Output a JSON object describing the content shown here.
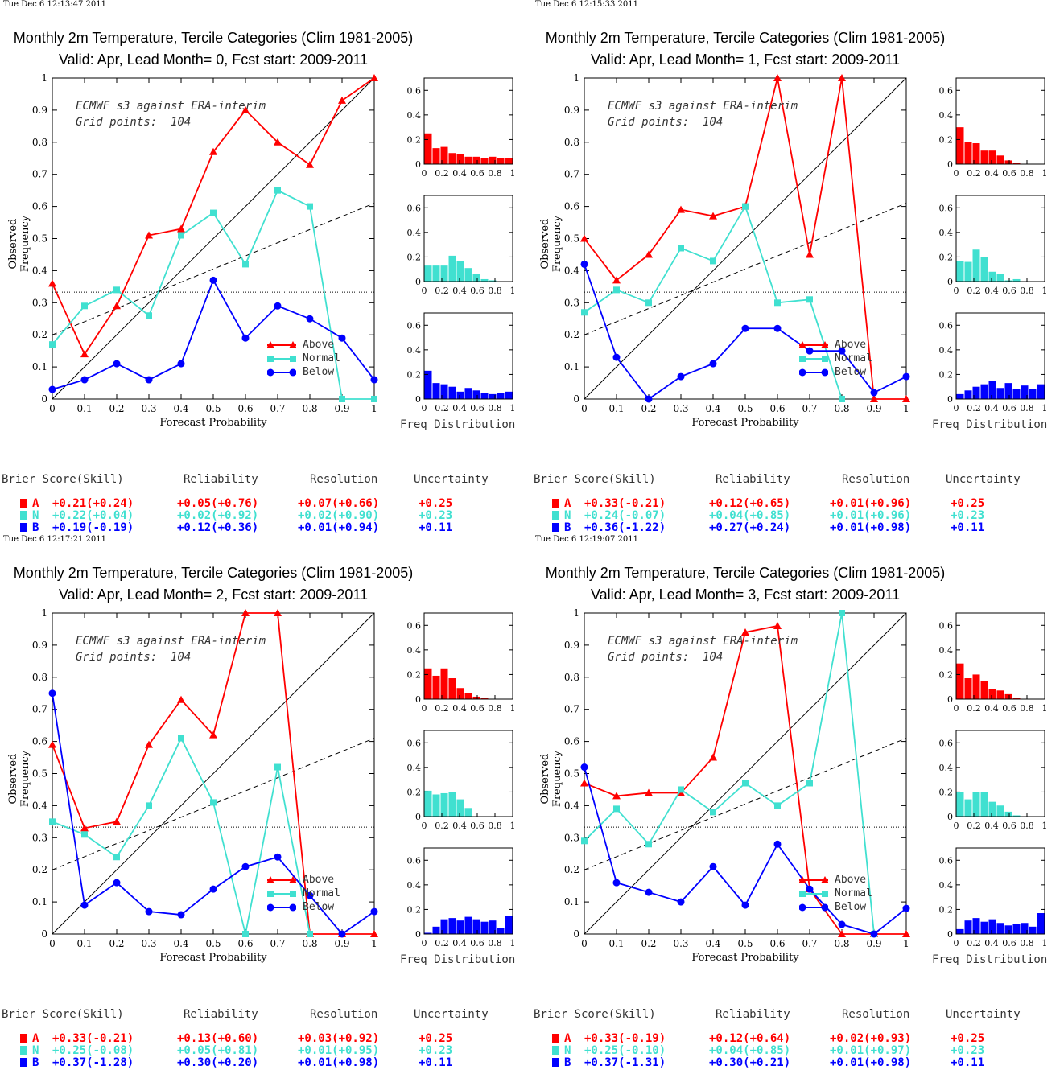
{
  "common": {
    "title": "Monthly 2m Temperature, Tercile Categories (Clim 1981-2005)",
    "annotation_line1": "ECMWF s3 against ERA-interim",
    "annotation_line2": "Grid points:  104",
    "ylabel": "Observed Frequency",
    "xlabel": "Forecast Probability",
    "freq_label": "Freq Distribution",
    "legend": [
      "Above",
      "Normal",
      "Below"
    ],
    "score_headers": [
      "Brier Score(Skill)",
      "Reliability",
      "Resolution",
      "Uncertainty"
    ],
    "score_row_labels": [
      "A",
      "N",
      "B"
    ],
    "colors": {
      "above": "#ff0000",
      "normal": "#40e0d0",
      "below": "#0000ff"
    },
    "main_xticks": [
      "0",
      "0.1",
      "0.2",
      "0.3",
      "0.4",
      "0.5",
      "0.6",
      "0.7",
      "0.8",
      "0.9",
      "1"
    ],
    "main_yticks": [
      "0",
      "0.1",
      "0.2",
      "0.3",
      "0.4",
      "0.5",
      "0.6",
      "0.7",
      "0.8",
      "0.9",
      "1"
    ],
    "hist_xticks": [
      "0",
      "0.2",
      "0.4",
      "0.6",
      "0.8",
      "1"
    ],
    "hist_yticks": [
      "0",
      "0.2",
      "0.4",
      "0.6"
    ]
  },
  "panels": [
    {
      "timestamp": "Tue Dec  6 12:13:47 2011",
      "subtitle": "Valid: Apr, Lead Month= 0, Fcst start: 2009-2011",
      "scores": [
        [
          "+0.21(+0.24)",
          "+0.05(+0.76)",
          "+0.07(+0.66)",
          "+0.25"
        ],
        [
          "+0.22(+0.04)",
          "+0.02(+0.92)",
          "+0.02(+0.90)",
          "+0.23"
        ],
        [
          "+0.19(-0.19)",
          "+0.12(+0.36)",
          "+0.01(+0.94)",
          "+0.11"
        ]
      ]
    },
    {
      "timestamp": "Tue Dec  6 12:15:33 2011",
      "subtitle": "Valid: Apr, Lead Month= 1, Fcst start: 2009-2011",
      "scores": [
        [
          "+0.33(-0.21)",
          "+0.12(+0.65)",
          "+0.01(+0.96)",
          "+0.25"
        ],
        [
          "+0.24(-0.07)",
          "+0.04(+0.85)",
          "+0.01(+0.96)",
          "+0.23"
        ],
        [
          "+0.36(-1.22)",
          "+0.27(+0.24)",
          "+0.01(+0.98)",
          "+0.11"
        ]
      ]
    },
    {
      "timestamp": "Tue Dec  6 12:17:21 2011",
      "subtitle": "Valid: Apr, Lead Month= 2, Fcst start: 2009-2011",
      "scores": [
        [
          "+0.33(-0.21)",
          "+0.13(+0.60)",
          "+0.03(+0.92)",
          "+0.25"
        ],
        [
          "+0.25(-0.08)",
          "+0.05(+0.81)",
          "+0.01(+0.95)",
          "+0.23"
        ],
        [
          "+0.37(-1.28)",
          "+0.30(+0.20)",
          "+0.01(+0.98)",
          "+0.11"
        ]
      ]
    },
    {
      "timestamp": "Tue Dec  6 12:19:07 2011",
      "subtitle": "Valid: Apr, Lead Month= 3, Fcst start: 2009-2011",
      "scores": [
        [
          "+0.33(-0.19)",
          "+0.12(+0.64)",
          "+0.02(+0.93)",
          "+0.25"
        ],
        [
          "+0.25(-0.10)",
          "+0.04(+0.85)",
          "+0.01(+0.97)",
          "+0.23"
        ],
        [
          "+0.37(-1.31)",
          "+0.30(+0.21)",
          "+0.01(+0.98)",
          "+0.11"
        ]
      ]
    }
  ],
  "chart_data": [
    {
      "type": "line",
      "title": "Monthly 2m Temperature, Tercile Categories (Clim 1981-2005)",
      "subtitle": "Valid: Apr, Lead Month= 0, Fcst start: 2009-2011",
      "xlabel": "Forecast Probability",
      "ylabel": "Observed Frequency",
      "xlim": [
        0,
        1
      ],
      "ylim": [
        0,
        1
      ],
      "x": [
        0,
        0.1,
        0.2,
        0.3,
        0.4,
        0.5,
        0.6,
        0.7,
        0.8,
        0.9,
        1
      ],
      "series": [
        {
          "name": "Above",
          "values": [
            0.36,
            0.14,
            0.29,
            0.51,
            0.53,
            0.77,
            0.9,
            0.8,
            0.73,
            0.93,
            1.0
          ]
        },
        {
          "name": "Normal",
          "values": [
            0.17,
            0.29,
            0.34,
            0.26,
            0.51,
            0.58,
            0.42,
            0.65,
            0.6,
            0.0,
            0.0
          ]
        },
        {
          "name": "Below",
          "values": [
            0.03,
            0.06,
            0.11,
            0.06,
            0.11,
            0.37,
            0.19,
            0.29,
            0.25,
            0.19,
            0.06
          ]
        }
      ],
      "reference_lines": {
        "perfect": [
          [
            0,
            0
          ],
          [
            1,
            1
          ]
        ],
        "no_skill": [
          [
            0,
            0.2
          ],
          [
            1,
            0.61
          ]
        ],
        "climatology_y": 0.333
      },
      "freq_distribution": {
        "xlim": [
          0,
          1
        ],
        "ylim": [
          0,
          0.7
        ],
        "Above": [
          0.25,
          0.13,
          0.14,
          0.09,
          0.08,
          0.06,
          0.06,
          0.05,
          0.06,
          0.05,
          0.05
        ],
        "Normal": [
          0.13,
          0.13,
          0.13,
          0.21,
          0.17,
          0.11,
          0.06,
          0.02,
          0.01,
          0,
          0
        ],
        "Below": [
          0.23,
          0.13,
          0.12,
          0.1,
          0.06,
          0.09,
          0.07,
          0.05,
          0.04,
          0.05,
          0.06
        ]
      }
    },
    {
      "type": "line",
      "title": "Monthly 2m Temperature, Tercile Categories (Clim 1981-2005)",
      "subtitle": "Valid: Apr, Lead Month= 1, Fcst start: 2009-2011",
      "xlabel": "Forecast Probability",
      "ylabel": "Observed Frequency",
      "xlim": [
        0,
        1
      ],
      "ylim": [
        0,
        1
      ],
      "x": [
        0,
        0.1,
        0.2,
        0.3,
        0.4,
        0.5,
        0.6,
        0.7,
        0.8,
        0.9,
        1
      ],
      "series": [
        {
          "name": "Above",
          "values": [
            0.5,
            0.37,
            0.45,
            0.59,
            0.57,
            0.6,
            1.0,
            0.45,
            1.0,
            0.0,
            0.0
          ]
        },
        {
          "name": "Normal",
          "values": [
            0.27,
            0.34,
            0.3,
            0.47,
            0.43,
            0.6,
            0.3,
            0.31,
            0.0,
            null,
            null
          ]
        },
        {
          "name": "Below",
          "values": [
            0.42,
            0.13,
            0.0,
            0.07,
            0.11,
            0.22,
            0.22,
            0.15,
            0.15,
            0.02,
            0.07
          ]
        }
      ],
      "reference_lines": {
        "perfect": [
          [
            0,
            0
          ],
          [
            1,
            1
          ]
        ],
        "no_skill": [
          [
            0,
            0.2
          ],
          [
            1,
            0.61
          ]
        ],
        "climatology_y": 0.333
      },
      "freq_distribution": {
        "xlim": [
          0,
          1
        ],
        "ylim": [
          0,
          0.7
        ],
        "Above": [
          0.3,
          0.18,
          0.17,
          0.11,
          0.11,
          0.07,
          0.03,
          0.01,
          0,
          0,
          0
        ],
        "Normal": [
          0.17,
          0.16,
          0.26,
          0.2,
          0.08,
          0.06,
          0.01,
          0.02,
          0,
          0,
          0
        ],
        "Below": [
          0.04,
          0.07,
          0.1,
          0.12,
          0.15,
          0.09,
          0.13,
          0.08,
          0.11,
          0.08,
          0.12
        ]
      }
    },
    {
      "type": "line",
      "title": "Monthly 2m Temperature, Tercile Categories (Clim 1981-2005)",
      "subtitle": "Valid: Apr, Lead Month= 2, Fcst start: 2009-2011",
      "xlabel": "Forecast Probability",
      "ylabel": "Observed Frequency",
      "xlim": [
        0,
        1
      ],
      "ylim": [
        0,
        1
      ],
      "x": [
        0,
        0.1,
        0.2,
        0.3,
        0.4,
        0.5,
        0.6,
        0.7,
        0.8,
        0.9,
        1
      ],
      "series": [
        {
          "name": "Above",
          "values": [
            0.59,
            0.33,
            0.35,
            0.59,
            0.73,
            0.62,
            1.0,
            1.0,
            0.0,
            0.0,
            0.0
          ]
        },
        {
          "name": "Normal",
          "values": [
            0.35,
            0.31,
            0.24,
            0.4,
            0.61,
            0.41,
            0.0,
            0.52,
            0.0,
            null,
            null
          ]
        },
        {
          "name": "Below",
          "values": [
            0.75,
            0.09,
            0.16,
            0.07,
            0.06,
            0.14,
            0.21,
            0.24,
            0.12,
            0.0,
            0.07
          ]
        }
      ],
      "reference_lines": {
        "perfect": [
          [
            0,
            0
          ],
          [
            1,
            1
          ]
        ],
        "no_skill": [
          [
            0,
            0.2
          ],
          [
            1,
            0.61
          ]
        ],
        "climatology_y": 0.333
      },
      "freq_distribution": {
        "xlim": [
          0,
          1
        ],
        "ylim": [
          0,
          0.7
        ],
        "Above": [
          0.25,
          0.19,
          0.25,
          0.17,
          0.09,
          0.05,
          0.02,
          0.01,
          0,
          0,
          0
        ],
        "Normal": [
          0.21,
          0.18,
          0.19,
          0.2,
          0.14,
          0.07,
          0,
          0,
          0,
          0,
          0
        ],
        "Below": [
          0.01,
          0.06,
          0.12,
          0.13,
          0.11,
          0.14,
          0.12,
          0.1,
          0.11,
          0.05,
          0.15
        ]
      }
    },
    {
      "type": "line",
      "title": "Monthly 2m Temperature, Tercile Categories (Clim 1981-2005)",
      "subtitle": "Valid: Apr, Lead Month= 3, Fcst start: 2009-2011",
      "xlabel": "Forecast Probability",
      "ylabel": "Observed Frequency",
      "xlim": [
        0,
        1
      ],
      "ylim": [
        0,
        1
      ],
      "x": [
        0,
        0.1,
        0.2,
        0.3,
        0.4,
        0.5,
        0.6,
        0.7,
        0.8,
        0.9,
        1
      ],
      "series": [
        {
          "name": "Above",
          "values": [
            0.47,
            0.43,
            0.44,
            0.44,
            0.55,
            0.94,
            0.96,
            0.14,
            0.0,
            0.0,
            0.0
          ]
        },
        {
          "name": "Normal",
          "values": [
            0.29,
            0.39,
            0.28,
            0.45,
            0.38,
            0.47,
            0.4,
            0.47,
            1.0,
            0.0,
            null
          ]
        },
        {
          "name": "Below",
          "values": [
            0.52,
            0.16,
            0.13,
            0.1,
            0.21,
            0.09,
            0.28,
            0.14,
            0.03,
            0.0,
            0.08
          ]
        }
      ],
      "reference_lines": {
        "perfect": [
          [
            0,
            0
          ],
          [
            1,
            1
          ]
        ],
        "no_skill": [
          [
            0,
            0.2
          ],
          [
            1,
            0.61
          ]
        ],
        "climatology_y": 0.333
      },
      "freq_distribution": {
        "xlim": [
          0,
          1
        ],
        "ylim": [
          0,
          0.7
        ],
        "Above": [
          0.29,
          0.17,
          0.2,
          0.15,
          0.08,
          0.07,
          0.04,
          0.01,
          0,
          0,
          0
        ],
        "Normal": [
          0.2,
          0.14,
          0.2,
          0.2,
          0.12,
          0.09,
          0.04,
          0.01,
          0,
          0,
          0
        ],
        "Below": [
          0.04,
          0.11,
          0.13,
          0.1,
          0.12,
          0.09,
          0.07,
          0.08,
          0.09,
          0.06,
          0.17
        ]
      }
    }
  ]
}
